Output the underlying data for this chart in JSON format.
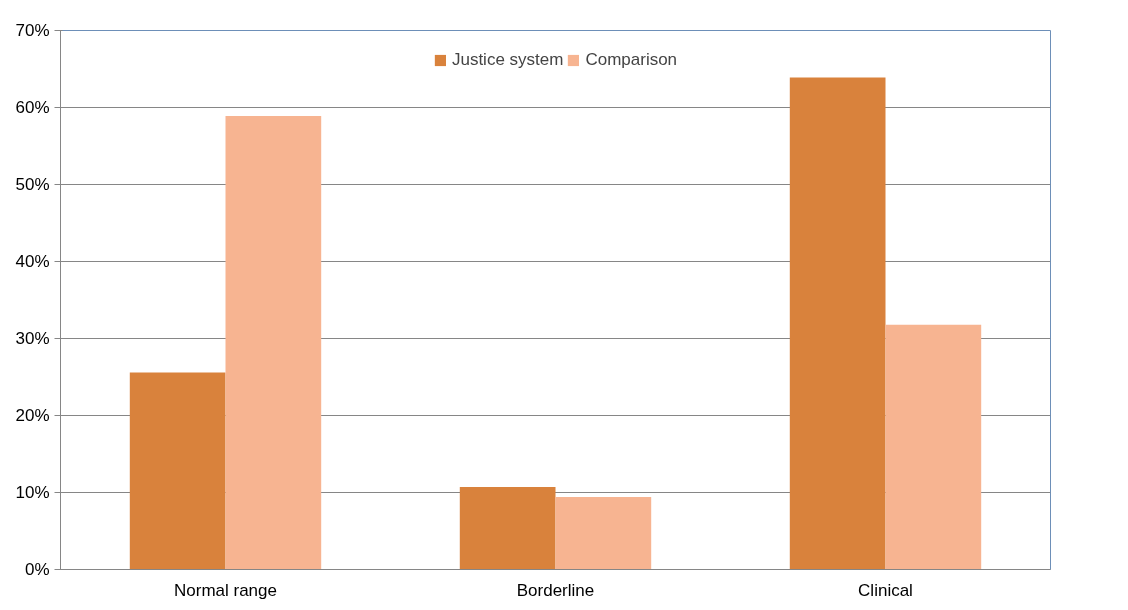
{
  "chart_data": {
    "type": "bar",
    "categories": [
      "Normal range",
      "Borderline",
      "Clinical"
    ],
    "series": [
      {
        "name": "Justice system",
        "color": "#d9823c",
        "values": [
          25.6,
          10.7,
          63.9
        ]
      },
      {
        "name": "Comparison",
        "color": "#f7b491",
        "values": [
          58.9,
          9.4,
          31.8
        ]
      }
    ],
    "ylim": [
      0,
      70
    ],
    "yticks": [
      {
        "value": 0,
        "label": "0%"
      },
      {
        "value": 10,
        "label": "10%"
      },
      {
        "value": 20,
        "label": "20%"
      },
      {
        "value": 30,
        "label": "30%"
      },
      {
        "value": 40,
        "label": "40%"
      },
      {
        "value": 50,
        "label": "50%"
      },
      {
        "value": 60,
        "label": "60%"
      },
      {
        "value": 70,
        "label": "70%"
      }
    ],
    "grid": "y",
    "legend": "top"
  }
}
